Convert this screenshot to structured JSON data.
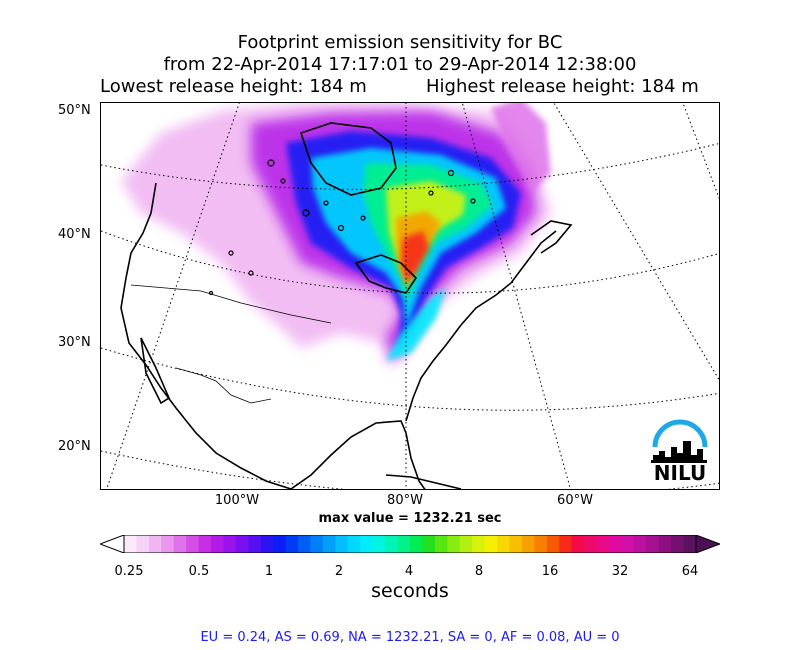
{
  "title": {
    "line1": "Footprint emission sensitivity for BC",
    "line2": "from 22-Apr-2014 17:17:01 to 29-Apr-2014 12:38:00",
    "lowest": "Lowest release height: 184 m",
    "highest": "Highest release height: 184 m"
  },
  "map": {
    "lat_labels": [
      "50°N",
      "40°N",
      "30°N",
      "20°N"
    ],
    "lon_labels": [
      "100°W",
      "80°W",
      "60°W"
    ],
    "logo_text": "NILU"
  },
  "max_value": "max value = 1232.21 sec",
  "colorbar": {
    "ticks": [
      "0.25",
      "0.5",
      "1",
      "2",
      "4",
      "8",
      "16",
      "32",
      "64"
    ],
    "unit": "seconds",
    "colors": [
      "#fbe9fb",
      "#f6d2f6",
      "#f0b6f2",
      "#e996ee",
      "#df72ea",
      "#d44ee6",
      "#c72ee6",
      "#b31be8",
      "#9b12ec",
      "#7a10f0",
      "#5510f2",
      "#2d12f2",
      "#0a1ef5",
      "#003cf5",
      "#005ef5",
      "#0080f8",
      "#00a0fa",
      "#00bffc",
      "#00d9fd",
      "#00ecfa",
      "#00f5e0",
      "#00f5b5",
      "#00f288",
      "#00ec55",
      "#22e020",
      "#58e612",
      "#88ec10",
      "#b2f010",
      "#d8f20c",
      "#f5f000",
      "#f8d800",
      "#f8be00",
      "#f8a000",
      "#f88000",
      "#f85a00",
      "#f82a1a",
      "#f40a48",
      "#ee0a6a",
      "#e80a88",
      "#e00aa0",
      "#d010a8",
      "#bc10a0",
      "#a41090",
      "#8c1080",
      "#741070",
      "#5c1060"
    ]
  },
  "regions": "EU = 0.24,  AS = 0.69,  NA = 1232.21,  SA = 0,  AF = 0.08,  AU = 0"
}
